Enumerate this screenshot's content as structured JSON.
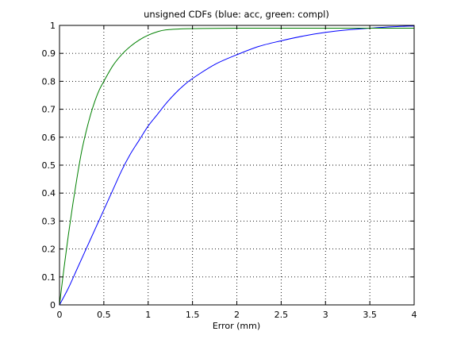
{
  "chart_data": {
    "type": "line",
    "title": "unsigned CDFs (blue: acc, green: compl)",
    "xlabel": "Error (mm)",
    "ylabel": "",
    "xlim": [
      0,
      4
    ],
    "ylim": [
      0,
      1
    ],
    "grid": true,
    "x_ticks": [
      "0",
      "0.5",
      "1",
      "1.5",
      "2",
      "2.5",
      "3",
      "3.5",
      "4"
    ],
    "y_ticks": [
      "0",
      "0.1",
      "0.2",
      "0.3",
      "0.4",
      "0.5",
      "0.6",
      "0.7",
      "0.8",
      "0.9",
      "1"
    ],
    "series": [
      {
        "color": "#0000ff",
        "x": [
          0,
          0.1,
          0.2,
          0.3,
          0.4,
          0.5,
          0.6,
          0.7,
          0.8,
          0.9,
          1.0,
          1.1,
          1.2,
          1.3,
          1.4,
          1.5,
          1.75,
          2.0,
          2.25,
          2.5,
          2.75,
          3.0,
          3.25,
          3.5,
          3.75,
          4.0
        ],
        "y": [
          0,
          0.06,
          0.13,
          0.2,
          0.27,
          0.34,
          0.41,
          0.48,
          0.54,
          0.59,
          0.64,
          0.68,
          0.72,
          0.755,
          0.785,
          0.81,
          0.86,
          0.895,
          0.925,
          0.945,
          0.962,
          0.975,
          0.984,
          0.99,
          0.995,
          0.998
        ]
      },
      {
        "color": "#008000",
        "x": [
          0,
          0.05,
          0.1,
          0.15,
          0.2,
          0.25,
          0.3,
          0.35,
          0.4,
          0.45,
          0.5,
          0.6,
          0.7,
          0.8,
          0.9,
          1.0,
          1.1,
          1.2,
          1.4,
          1.6,
          2.0,
          2.5,
          3.0,
          3.5,
          4.0
        ],
        "y": [
          0,
          0.13,
          0.25,
          0.36,
          0.46,
          0.55,
          0.62,
          0.68,
          0.73,
          0.77,
          0.8,
          0.855,
          0.895,
          0.925,
          0.948,
          0.965,
          0.977,
          0.984,
          0.988,
          0.989,
          0.99,
          0.99,
          0.99,
          0.99,
          0.99
        ]
      }
    ]
  }
}
